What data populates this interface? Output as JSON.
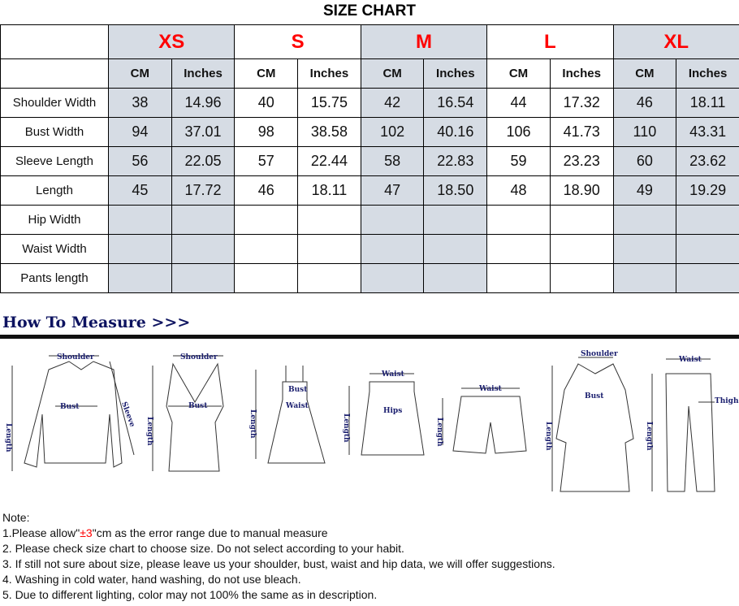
{
  "title": "SIZE CHART",
  "sizes": [
    "XS",
    "S",
    "M",
    "L",
    "XL"
  ],
  "units": [
    "CM",
    "Inches"
  ],
  "rows": [
    {
      "label": "Shoulder Width",
      "values": [
        "38",
        "14.96",
        "40",
        "15.75",
        "42",
        "16.54",
        "44",
        "17.32",
        "46",
        "18.11"
      ]
    },
    {
      "label": "Bust Width",
      "values": [
        "94",
        "37.01",
        "98",
        "38.58",
        "102",
        "40.16",
        "106",
        "41.73",
        "110",
        "43.31"
      ]
    },
    {
      "label": "Sleeve Length",
      "values": [
        "56",
        "22.05",
        "57",
        "22.44",
        "58",
        "22.83",
        "59",
        "23.23",
        "60",
        "23.62"
      ]
    },
    {
      "label": "Length",
      "values": [
        "45",
        "17.72",
        "46",
        "18.11",
        "47",
        "18.50",
        "48",
        "18.90",
        "49",
        "19.29"
      ]
    },
    {
      "label": "Hip Width",
      "values": [
        "",
        "",
        "",
        "",
        "",
        "",
        "",
        "",
        "",
        ""
      ]
    },
    {
      "label": "Waist Width",
      "values": [
        "",
        "",
        "",
        "",
        "",
        "",
        "",
        "",
        "",
        ""
      ]
    },
    {
      "label": "Pants length",
      "values": [
        "",
        "",
        "",
        "",
        "",
        "",
        "",
        "",
        "",
        ""
      ]
    }
  ],
  "shade_color": "#d6dce4",
  "size_color": "#ff0000",
  "how_to_measure": "How To Measure >>>",
  "illustration_labels": {
    "shoulder": "Shoulder",
    "bust": "Bust",
    "sleeve": "Sleeve",
    "length": "Length",
    "waist": "Waist",
    "hips": "Hips",
    "thigh": "Thigh"
  },
  "notes": {
    "heading": "Note:",
    "n1_pre": "1.Please allow\"",
    "n1_red": "±3",
    "n1_post": "\"cm as the error range due to manual measure",
    "n2": "2. Please check size chart to choose size. Do not select according to your habit.",
    "n3": "3. If still not sure about size, please leave us your shoulder, bust, waist and hip data, we will offer suggestions.",
    "n4": "4. Washing in cold water, hand washing, do not use bleach.",
    "n5": "5. Due to different lighting, color may not 100% the same as in description."
  }
}
